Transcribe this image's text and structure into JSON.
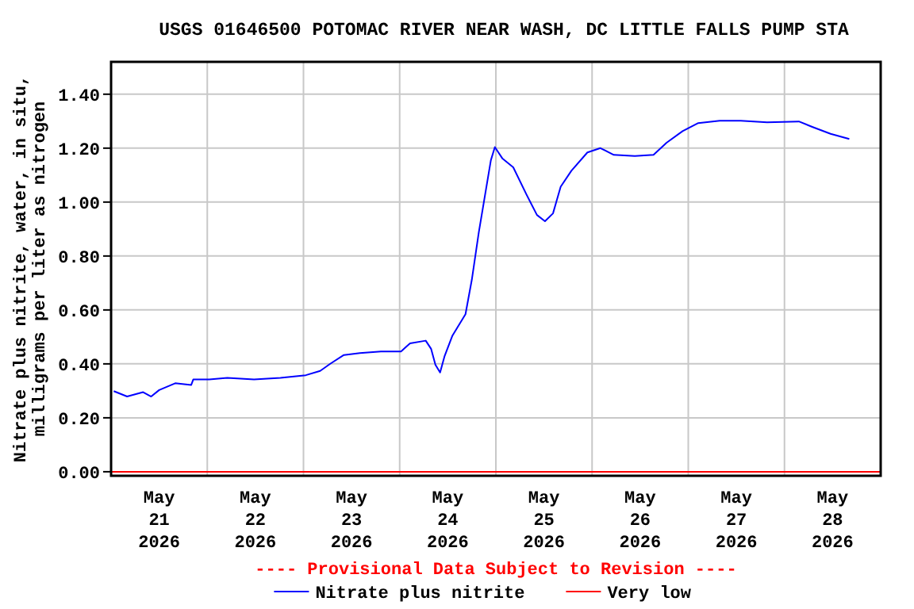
{
  "chart_data": {
    "type": "line",
    "title": "USGS 01646500 POTOMAC RIVER NEAR WASH, DC LITTLE FALLS PUMP STA",
    "ylabel": "Nitrate plus nitrite, water, in situ,\nmilligrams per liter as nitrogen",
    "annotations": [
      "---- Provisional Data Subject to Revision ----"
    ],
    "xlim": [
      "2026-05-21T00:00",
      "2026-05-29T00:00"
    ],
    "xticks": [
      {
        "value": "2026-05-21T00:00",
        "label": null
      },
      {
        "value": "2026-05-21T12:00",
        "label": "May\n21\n2026"
      },
      {
        "value": "2026-05-22T00:00",
        "label": null
      },
      {
        "value": "2026-05-22T12:00",
        "label": "May\n22\n2026"
      },
      {
        "value": "2026-05-23T00:00",
        "label": null
      },
      {
        "value": "2026-05-23T12:00",
        "label": "May\n23\n2026"
      },
      {
        "value": "2026-05-24T00:00",
        "label": null
      },
      {
        "value": "2026-05-24T12:00",
        "label": "May\n24\n2026"
      },
      {
        "value": "2026-05-25T00:00",
        "label": null
      },
      {
        "value": "2026-05-25T12:00",
        "label": "May\n25\n2026"
      },
      {
        "value": "2026-05-26T00:00",
        "label": null
      },
      {
        "value": "2026-05-26T12:00",
        "label": "May\n26\n2026"
      },
      {
        "value": "2026-05-27T00:00",
        "label": null
      },
      {
        "value": "2026-05-27T12:00",
        "label": "May\n27\n2026"
      },
      {
        "value": "2026-05-28T00:00",
        "label": null
      },
      {
        "value": "2026-05-28T12:00",
        "label": "May\n28\n2026"
      },
      {
        "value": "2026-05-29T00:00",
        "label": null
      }
    ],
    "ylim": [
      -0.015,
      1.52
    ],
    "yticks": [
      {
        "value": 0,
        "label": "0.00"
      },
      {
        "value": 0.2,
        "label": "0.20"
      },
      {
        "value": 0.4,
        "label": "0.40"
      },
      {
        "value": 0.6,
        "label": "0.60"
      },
      {
        "value": 0.8,
        "label": "0.80"
      },
      {
        "value": 1,
        "label": "1.00"
      },
      {
        "value": 1.2,
        "label": "1.20"
      },
      {
        "value": 1.4,
        "label": "1.40"
      }
    ],
    "grid": true,
    "legend": "bottom",
    "marker": "none",
    "line_style": "solid",
    "series": [
      {
        "name": "Nitrate plus nitrite",
        "color": "#0000ff",
        "x": [
          "2026-05-21T00:40",
          "2026-05-21T04:00",
          "2026-05-21T08:00",
          "2026-05-21T10:00",
          "2026-05-21T12:00",
          "2026-05-21T16:00",
          "2026-05-21T20:00",
          "2026-05-21T20:30",
          "2026-05-22T00:30",
          "2026-05-22T05:00",
          "2026-05-22T11:40",
          "2026-05-22T18:15",
          "2026-05-23T00:35",
          "2026-05-23T04:10",
          "2026-05-23T06:45",
          "2026-05-23T10:05",
          "2026-05-23T14:05",
          "2026-05-23T19:20",
          "2026-05-24T00:20",
          "2026-05-24T02:35",
          "2026-05-24T06:30",
          "2026-05-24T07:50",
          "2026-05-24T08:55",
          "2026-05-24T10:05",
          "2026-05-24T11:10",
          "2026-05-24T13:10",
          "2026-05-24T16:25",
          "2026-05-24T18:00",
          "2026-05-24T19:45",
          "2026-05-24T21:05",
          "2026-05-24T22:45",
          "2026-05-24T23:45",
          "2026-05-25T01:40",
          "2026-05-25T04:20",
          "2026-05-25T07:40",
          "2026-05-25T10:15",
          "2026-05-25T12:15",
          "2026-05-25T14:15",
          "2026-05-25T16:10",
          "2026-05-25T18:50",
          "2026-05-25T22:50",
          "2026-05-26T02:05",
          "2026-05-26T05:25",
          "2026-05-26T10:40",
          "2026-05-26T15:20",
          "2026-05-26T18:35",
          "2026-05-26T22:35",
          "2026-05-27T02:30",
          "2026-05-27T07:50",
          "2026-05-27T13:05",
          "2026-05-27T19:40",
          "2026-05-28T03:35",
          "2026-05-28T06:55",
          "2026-05-28T11:30",
          "2026-05-28T16:10"
        ],
        "values": [
          0.299,
          0.279,
          0.295,
          0.279,
          0.303,
          0.328,
          0.322,
          0.342,
          0.342,
          0.348,
          0.342,
          0.348,
          0.358,
          0.374,
          0.401,
          0.433,
          0.44,
          0.446,
          0.446,
          0.476,
          0.486,
          0.456,
          0.397,
          0.368,
          0.427,
          0.505,
          0.584,
          0.712,
          0.889,
          1.007,
          1.155,
          1.204,
          1.161,
          1.129,
          1.027,
          0.952,
          0.929,
          0.958,
          1.057,
          1.116,
          1.184,
          1.2,
          1.175,
          1.171,
          1.175,
          1.22,
          1.263,
          1.293,
          1.302,
          1.302,
          1.296,
          1.299,
          1.279,
          1.253,
          1.234
        ]
      },
      {
        "name": "Very low",
        "color": "#ff0000",
        "x": [
          "2026-05-21T00:00",
          "2026-05-29T00:00"
        ],
        "values": [
          0,
          0
        ]
      }
    ]
  }
}
